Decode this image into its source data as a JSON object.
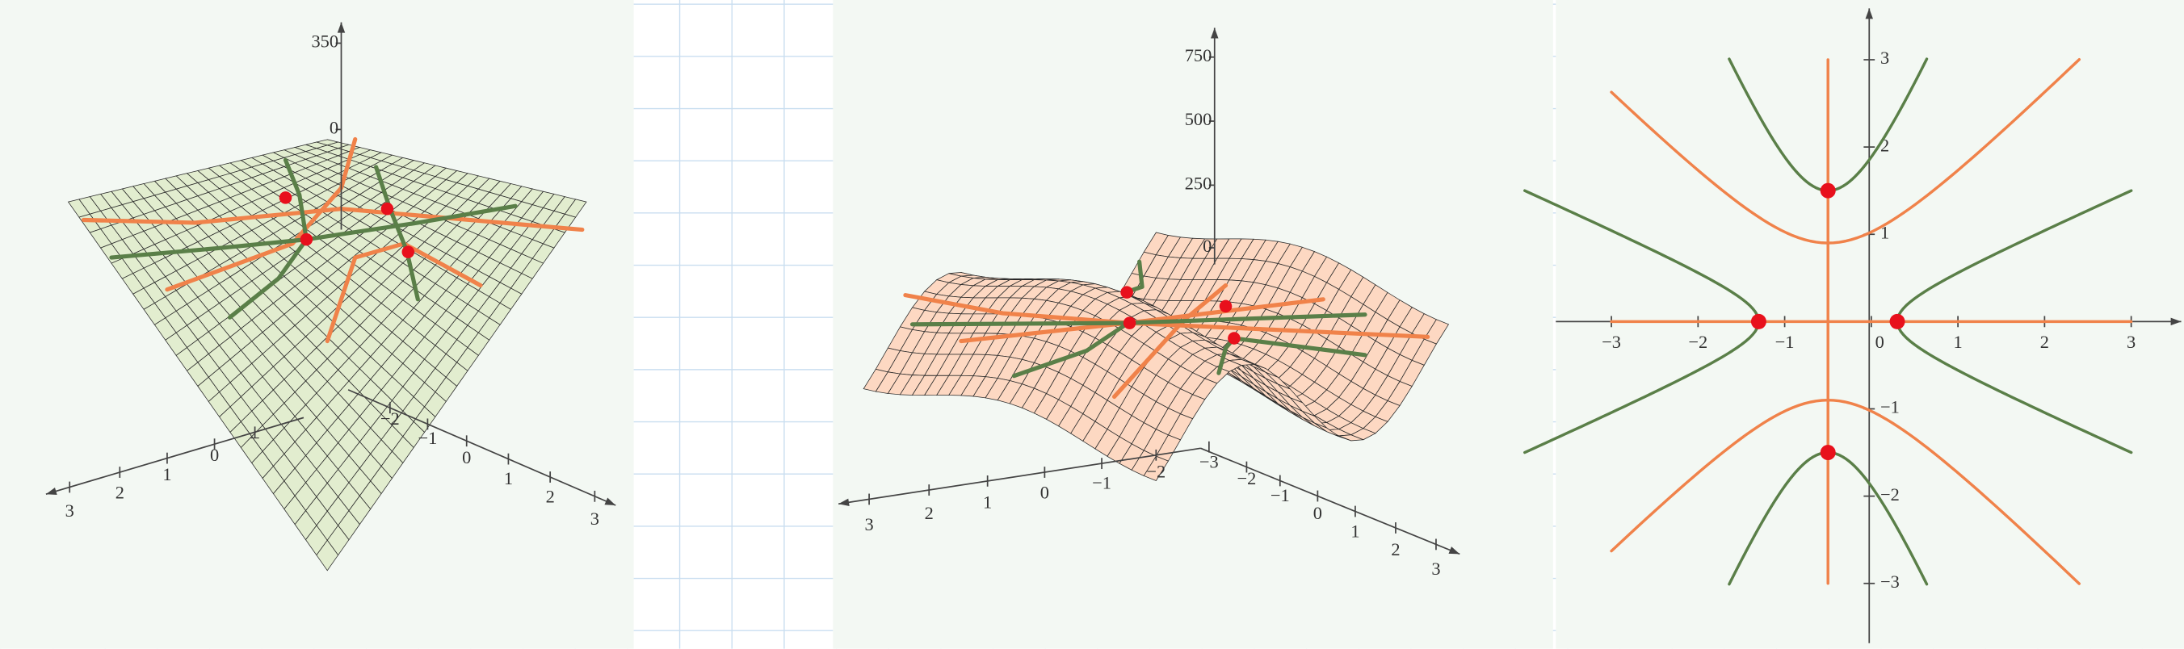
{
  "plot1": {
    "z_ticks": [
      "350",
      "0"
    ],
    "x_ticks": [
      "3",
      "2",
      "1",
      "0",
      "−"
    ],
    "y_ticks": [
      "−2",
      "−1",
      "0",
      "1",
      "2",
      "3"
    ]
  },
  "plot2": {
    "z_ticks": [
      "750",
      "500",
      "250",
      "0"
    ],
    "x_ticks": [
      "3",
      "2",
      "1",
      "0",
      "−1",
      "−2",
      "−3"
    ],
    "y_ticks": [
      "−2",
      "−1",
      "0",
      "1",
      "2",
      "3"
    ]
  },
  "plot3": {
    "x_ticks": [
      "−3",
      "−2",
      "−1",
      "0",
      "1",
      "2",
      "3"
    ],
    "y_ticks": [
      "3",
      "2",
      "1",
      "0",
      "−1",
      "−2",
      "−3"
    ]
  }
}
